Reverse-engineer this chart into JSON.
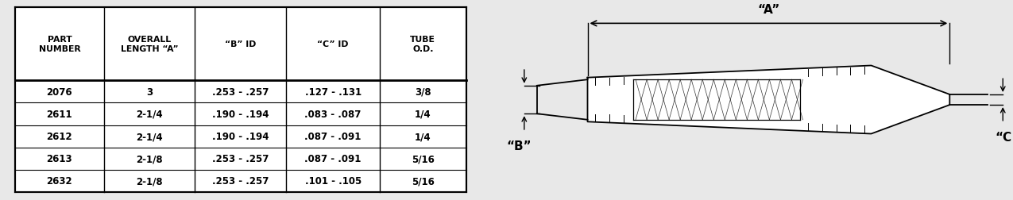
{
  "headers": [
    "PART\nNUMBER",
    "OVERALL\nLENGTH “A”",
    "“B” ID",
    "“C” ID",
    "TUBE\nO.D."
  ],
  "rows": [
    [
      "2076",
      "3",
      ".253 - .257",
      ".127 - .131",
      "3/8"
    ],
    [
      "2611",
      "2-1/4",
      ".190 - .194",
      ".083 - .087",
      "1/4"
    ],
    [
      "2612",
      "2-1/4",
      ".190 - .194",
      ".087 - .091",
      "1/4"
    ],
    [
      "2613",
      "2-1/8",
      ".253 - .257",
      ".087 - .091",
      "5/16"
    ],
    [
      "2632",
      "2-1/8",
      ".253 - .257",
      ".101 - .105",
      "5/16"
    ]
  ],
  "bg_color": "#e8e8e8",
  "table_bg": "#ffffff",
  "diagram_label_A": "“A”",
  "diagram_label_B": "“B”",
  "diagram_label_C": "“C”"
}
